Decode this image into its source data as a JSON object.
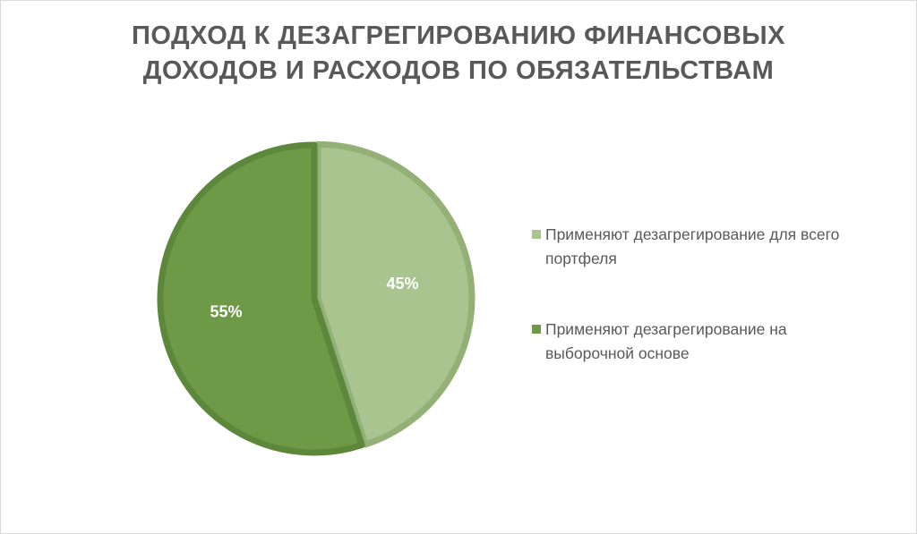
{
  "chart_data": {
    "type": "pie",
    "title_lines": [
      "ПОДХОД К ДЕЗАГРЕГИРОВАНИЮ ФИНАНСОВЫХ",
      "ДОХОДОВ И РАСХОДОВ ПО ОБЯЗАТЕЛЬСТВАМ"
    ],
    "slices": [
      {
        "label": "Применяют дезагрегирование для всего портфеля",
        "value": 45,
        "display": "45%",
        "color": "#a9c48e",
        "edge_color": "#93b077"
      },
      {
        "label": "Применяют дезагрегирование на выборочной основе",
        "value": 55,
        "display": "55%",
        "color": "#6e9a48",
        "edge_color": "#5d873b"
      }
    ],
    "data_label_color": "#ffffff",
    "legend_position": "right",
    "start_angle_deg": 0,
    "direction": "clockwise"
  }
}
